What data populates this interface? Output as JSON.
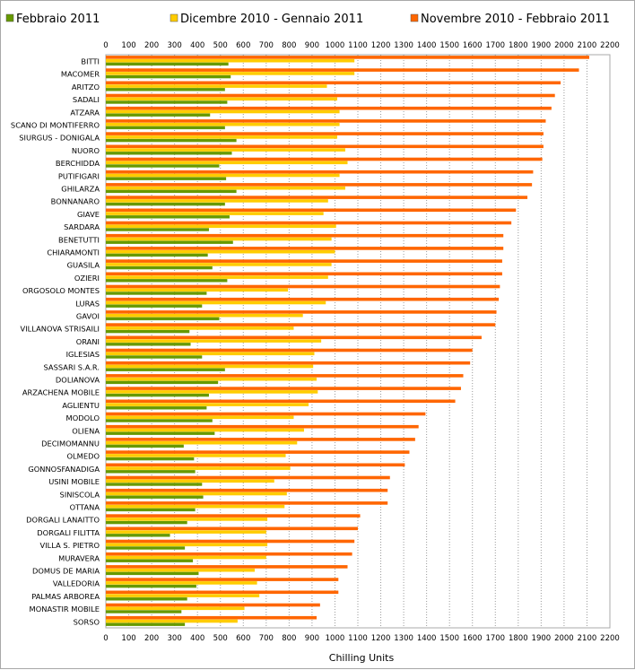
{
  "chart_data": {
    "type": "bar",
    "orientation": "horizontal",
    "xlabel": "Chilling Units",
    "ylabel": "",
    "xlim": [
      0,
      2200
    ],
    "xticks": [
      0,
      100,
      200,
      300,
      400,
      500,
      600,
      700,
      800,
      900,
      1000,
      1100,
      1200,
      1300,
      1400,
      1500,
      1600,
      1700,
      1800,
      1900,
      2000,
      2100,
      2200
    ],
    "grid": "vertical-dotted",
    "legend_position": "top",
    "categories": [
      "BITTI",
      "MACOMER",
      "ARITZO",
      "SADALI",
      "ATZARA",
      "SCANO DI MONTIFERRO",
      "SIURGUS - DONIGALA",
      "NUORO",
      "BERCHIDDA",
      "PUTIFIGARI",
      "GHILARZA",
      "BONNANARO",
      "GIAVE",
      "SARDARA",
      "BENETUTTI",
      "CHIARAMONTI",
      "GUASILA",
      "OZIERI",
      "ORGOSOLO MONTES",
      "LURAS",
      "GAVOI",
      "VILLANOVA STRISAILI",
      "ORANI",
      "IGLESIAS",
      "SASSARI S.A.R.",
      "DOLIANOVA",
      "ARZACHENA MOBILE",
      "AGLIENTU",
      "MODOLO",
      "OLIENA",
      "DECIMOMANNU",
      "OLMEDO",
      "GONNOSFANADIGA",
      "USINI MOBILE",
      "SINISCOLA",
      "OTTANA",
      "DORGALI LANAITTO",
      "DORGALI FILITTA",
      "VILLA S. PIETRO",
      "MURAVERA",
      "DOMUS DE MARIA",
      "VALLEDORIA",
      "PALMAS ARBOREA",
      "MONASTIR MOBILE",
      "SORSO"
    ],
    "series": [
      {
        "name": "Novembre 2010 - Febbraio 2011",
        "color": "#ff6600",
        "values": [
          2110,
          2065,
          1985,
          1960,
          1945,
          1920,
          1910,
          1910,
          1905,
          1865,
          1860,
          1840,
          1790,
          1770,
          1735,
          1735,
          1730,
          1730,
          1720,
          1715,
          1705,
          1700,
          1640,
          1600,
          1590,
          1560,
          1550,
          1525,
          1395,
          1365,
          1350,
          1325,
          1305,
          1240,
          1230,
          1230,
          1110,
          1100,
          1085,
          1075,
          1055,
          1015,
          1015,
          935,
          920
        ]
      },
      {
        "name": "Dicembre 2010 - Gennaio 2011",
        "color": "#ffcc00",
        "values": [
          1085,
          1085,
          965,
          1010,
          1020,
          1020,
          1010,
          1045,
          1055,
          1020,
          1045,
          970,
          950,
          1005,
          985,
          1000,
          985,
          970,
          795,
          960,
          860,
          820,
          940,
          910,
          905,
          920,
          925,
          885,
          820,
          865,
          835,
          785,
          805,
          735,
          790,
          780,
          705,
          700,
          705,
          700,
          650,
          660,
          670,
          605,
          575
        ]
      },
      {
        "name": "Febbraio 2011",
        "color": "#669900",
        "values": [
          535,
          545,
          520,
          530,
          455,
          520,
          570,
          550,
          495,
          525,
          570,
          520,
          540,
          450,
          555,
          445,
          465,
          530,
          440,
          420,
          495,
          365,
          370,
          420,
          520,
          490,
          450,
          440,
          465,
          475,
          340,
          385,
          390,
          420,
          425,
          390,
          355,
          280,
          345,
          380,
          405,
          395,
          355,
          330,
          345
        ]
      }
    ]
  }
}
